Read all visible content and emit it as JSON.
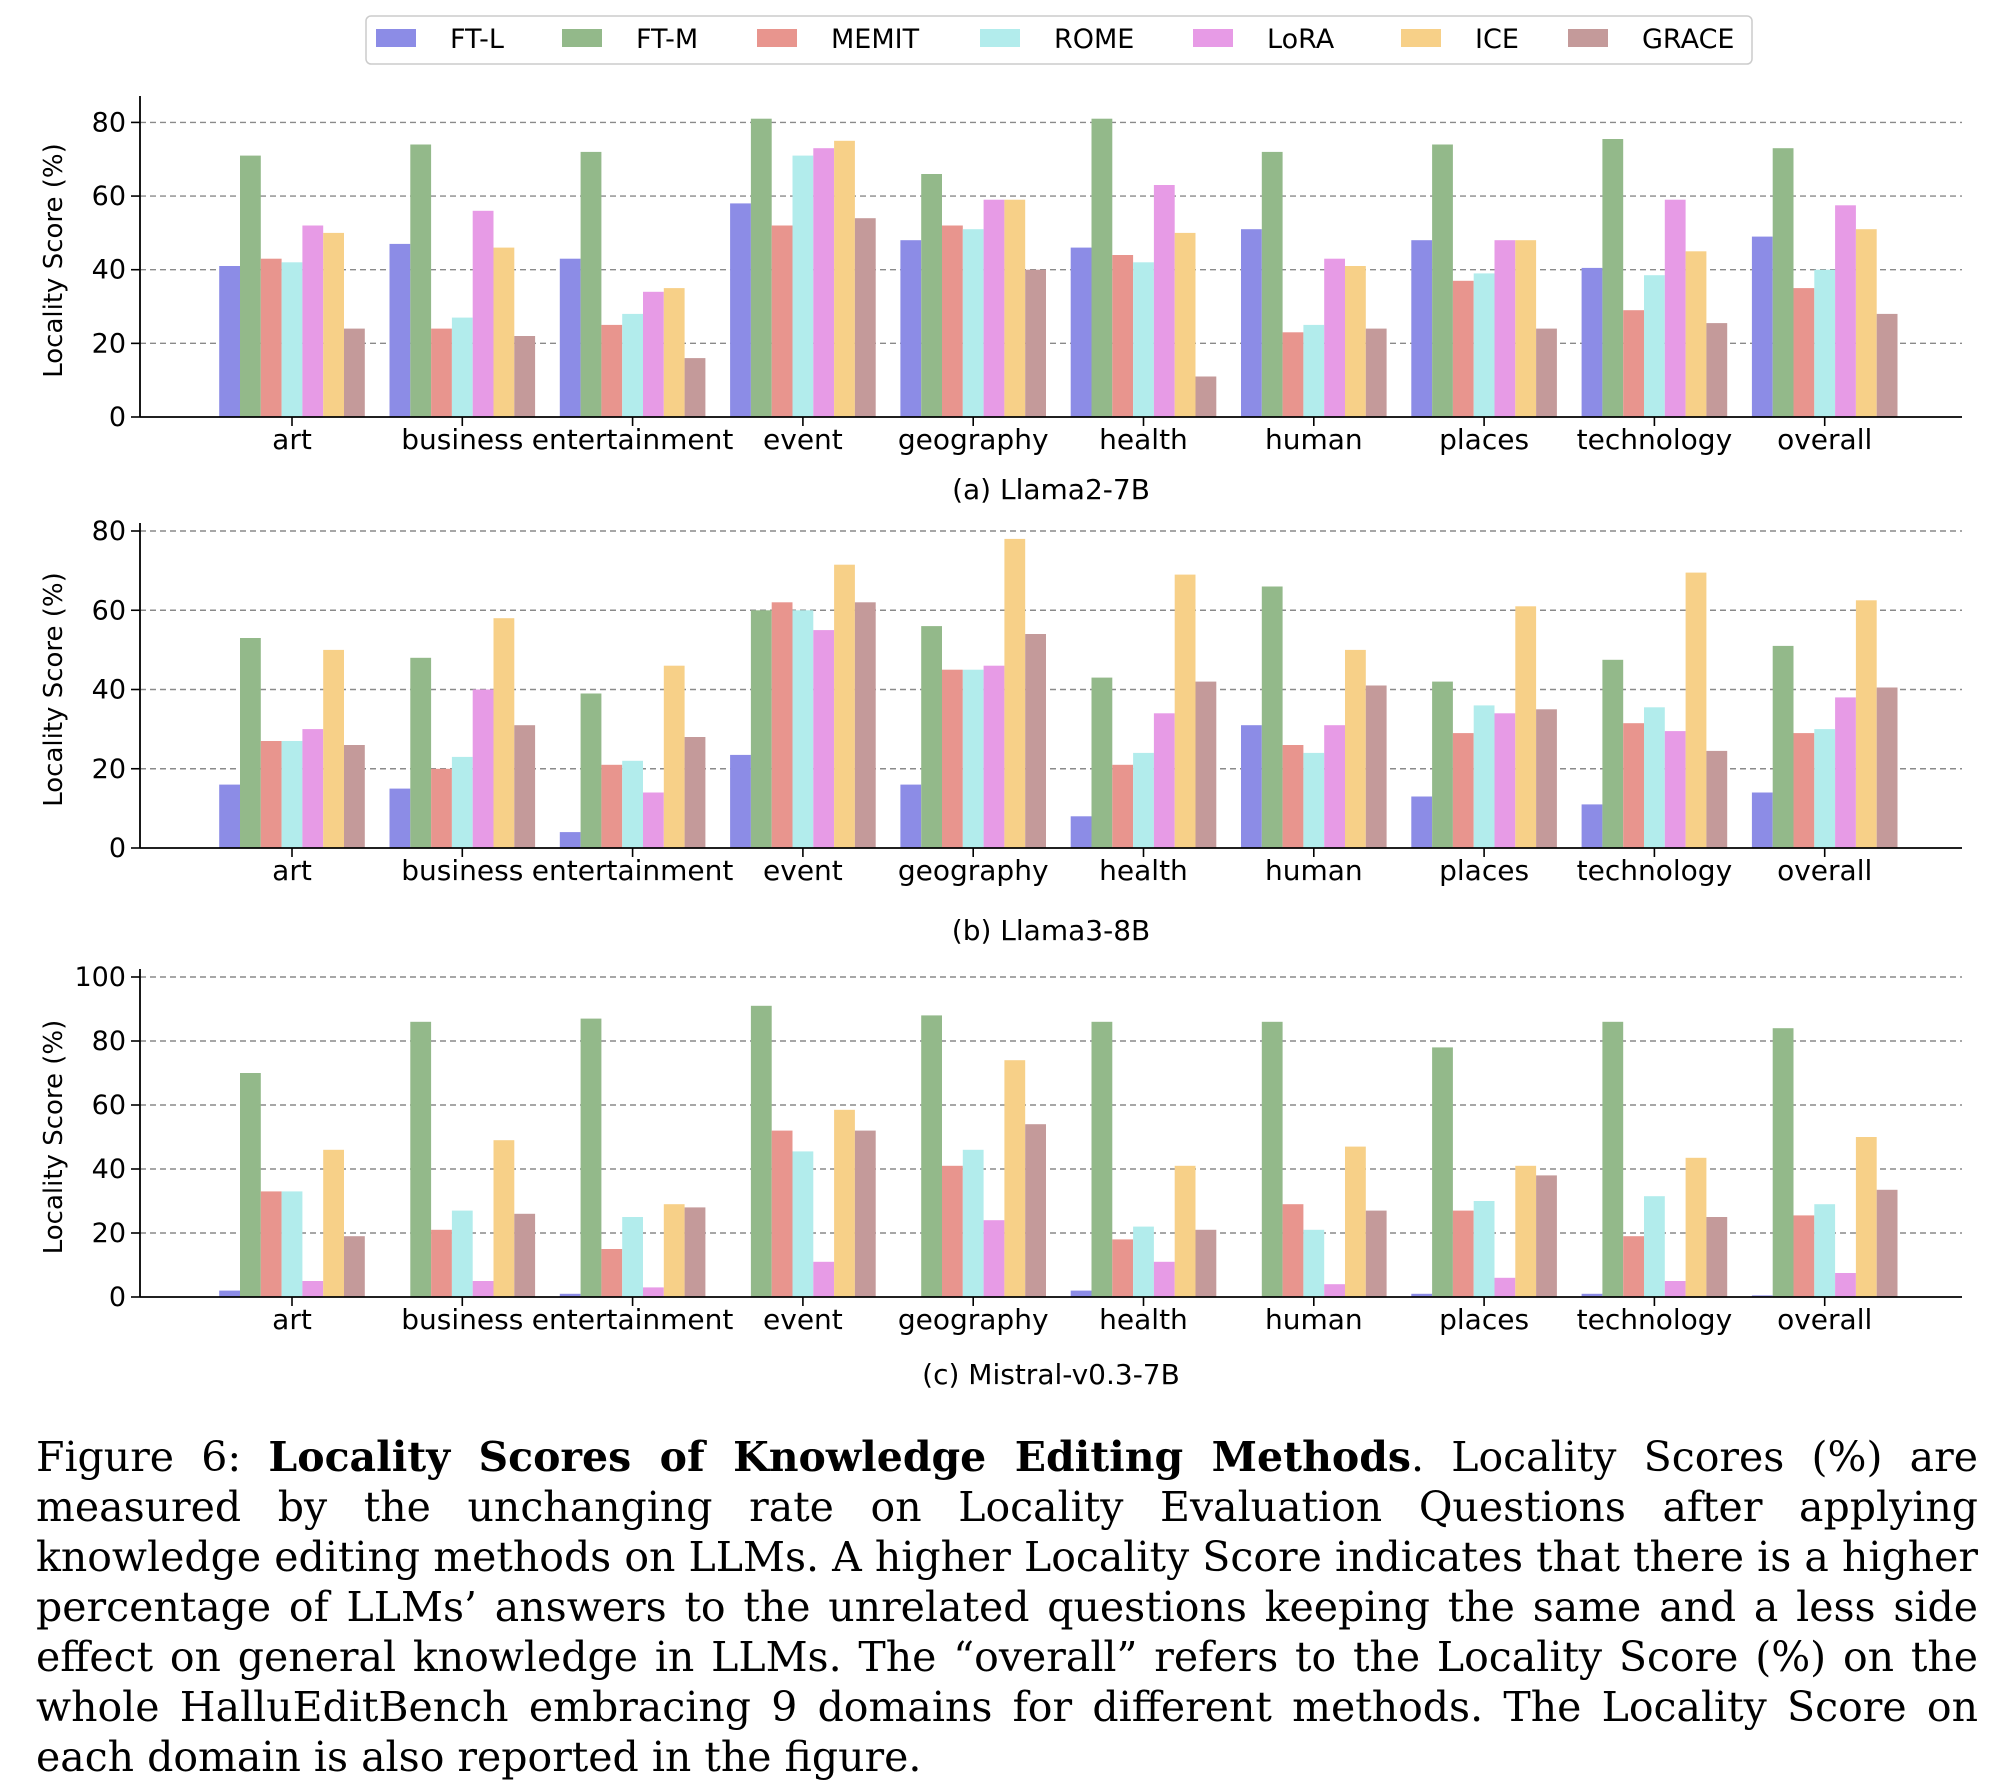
{
  "legend": {
    "series": [
      "FT-L",
      "FT-M",
      "MEMIT",
      "ROME",
      "LoRA",
      "ICE",
      "GRACE"
    ],
    "colors": [
      "#8c8ce6",
      "#93b98a",
      "#e8958e",
      "#b2ecec",
      "#e79be6",
      "#f7d088",
      "#c49a9a"
    ],
    "placement": "top-center"
  },
  "chart_data": [
    {
      "type": "bar",
      "title": "(a) Llama2-7B",
      "xlabel": "",
      "ylabel": "Locality Score (%)",
      "ylim": [
        0,
        85
      ],
      "yticks": [
        0,
        20,
        40,
        60,
        80
      ],
      "grid": "horizontal dashed",
      "categories": [
        "art",
        "business",
        "entertainment",
        "event",
        "geography",
        "health",
        "human",
        "places",
        "technology",
        "overall"
      ],
      "series": [
        {
          "name": "FT-L",
          "values": [
            41,
            47,
            43,
            58,
            48,
            46,
            51,
            48,
            40.5,
            49
          ]
        },
        {
          "name": "FT-M",
          "values": [
            71,
            74,
            72,
            81,
            66,
            81,
            72,
            74,
            75.5,
            73
          ]
        },
        {
          "name": "MEMIT",
          "values": [
            43,
            24,
            25,
            52,
            52,
            44,
            23,
            37,
            29,
            35
          ]
        },
        {
          "name": "ROME",
          "values": [
            42,
            27,
            28,
            71,
            51,
            42,
            25,
            39,
            38.5,
            40
          ]
        },
        {
          "name": "LoRA",
          "values": [
            52,
            56,
            34,
            73,
            59,
            63,
            43,
            48,
            59,
            57.5
          ]
        },
        {
          "name": "ICE",
          "values": [
            50,
            46,
            35,
            75,
            59,
            50,
            41,
            48,
            45,
            51
          ]
        },
        {
          "name": "GRACE",
          "values": [
            24,
            22,
            16,
            54,
            40,
            11,
            24,
            24,
            25.5,
            28
          ]
        }
      ]
    },
    {
      "type": "bar",
      "title": "(b) Llama3-8B",
      "xlabel": "",
      "ylabel": "Locality Score (%)",
      "ylim": [
        0,
        80
      ],
      "yticks": [
        0,
        20,
        40,
        60,
        80
      ],
      "grid": "horizontal dashed",
      "categories": [
        "art",
        "business",
        "entertainment",
        "event",
        "geography",
        "health",
        "human",
        "places",
        "technology",
        "overall"
      ],
      "series": [
        {
          "name": "FT-L",
          "values": [
            16,
            15,
            4,
            23.5,
            16,
            8,
            31,
            13,
            11,
            14
          ]
        },
        {
          "name": "FT-M",
          "values": [
            53,
            48,
            39,
            60,
            56,
            43,
            66,
            42,
            47.5,
            51
          ]
        },
        {
          "name": "MEMIT",
          "values": [
            27,
            20,
            21,
            62,
            45,
            21,
            26,
            29,
            31.5,
            29
          ]
        },
        {
          "name": "ROME",
          "values": [
            27,
            23,
            22,
            60,
            45,
            24,
            24,
            36,
            35.5,
            30
          ]
        },
        {
          "name": "LoRA",
          "values": [
            30,
            40,
            14,
            55,
            46,
            34,
            31,
            34,
            29.5,
            38
          ]
        },
        {
          "name": "ICE",
          "values": [
            50,
            58,
            46,
            71.5,
            78,
            69,
            50,
            61,
            69.5,
            62.5
          ]
        },
        {
          "name": "GRACE",
          "values": [
            26,
            31,
            28,
            62,
            54,
            42,
            41,
            35,
            24.5,
            40.5
          ]
        }
      ]
    },
    {
      "type": "bar",
      "title": "(c) Mistral-v0.3-7B",
      "xlabel": "",
      "ylabel": "Locality Score (%)",
      "ylim": [
        0,
        100
      ],
      "yticks": [
        0,
        20,
        40,
        60,
        80,
        100
      ],
      "grid": "horizontal dashed",
      "categories": [
        "art",
        "business",
        "entertainment",
        "event",
        "geography",
        "health",
        "human",
        "places",
        "technology",
        "overall"
      ],
      "series": [
        {
          "name": "FT-L",
          "values": [
            2,
            0,
            1,
            0,
            0,
            2,
            0,
            1,
            1,
            0.5
          ]
        },
        {
          "name": "FT-M",
          "values": [
            70,
            86,
            87,
            91,
            88,
            86,
            86,
            78,
            86,
            84
          ]
        },
        {
          "name": "MEMIT",
          "values": [
            33,
            21,
            15,
            52,
            41,
            18,
            29,
            27,
            19,
            25.5
          ]
        },
        {
          "name": "ROME",
          "values": [
            33,
            27,
            25,
            45.5,
            46,
            22,
            21,
            30,
            31.5,
            29
          ]
        },
        {
          "name": "LoRA",
          "values": [
            5,
            5,
            3,
            11,
            24,
            11,
            4,
            6,
            5,
            7.5
          ]
        },
        {
          "name": "ICE",
          "values": [
            46,
            49,
            29,
            58.5,
            74,
            41,
            47,
            41,
            43.5,
            50
          ]
        },
        {
          "name": "GRACE",
          "values": [
            19,
            26,
            28,
            52,
            54,
            21,
            27,
            38,
            25,
            33.5
          ]
        }
      ]
    }
  ],
  "caption": {
    "prefix": "Figure 6: ",
    "bold": "Locality Scores of Knowledge Editing Methods",
    "text": ". Locality Scores (%) are measured by the unchanging rate on Locality Evaluation Questions after applying knowledge editing methods on LLMs. A higher Locality Score indicates that there is a higher percentage of LLMs’ answers to the unrelated questions keeping the same and a less side effect on general knowledge in LLMs. The “overall” refers to the Locality Score (%) on the whole HalluEditBench embracing 9 domains for different methods. The Locality Score on each domain is also reported in the figure."
  }
}
